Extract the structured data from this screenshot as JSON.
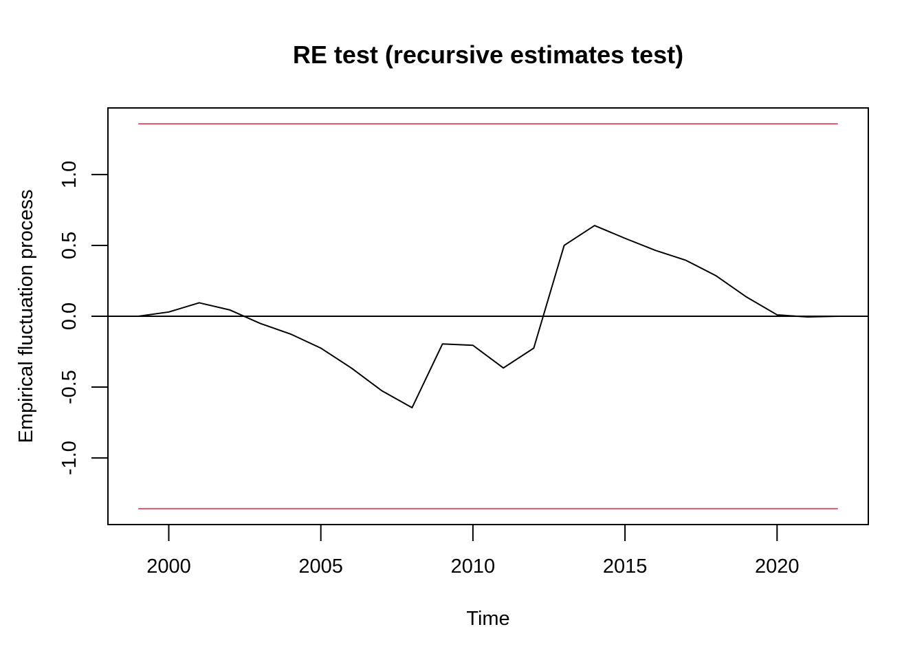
{
  "chart_data": {
    "type": "line",
    "title": "RE test (recursive estimates test)",
    "xlabel": "Time",
    "ylabel": "Empirical fluctuation process",
    "xlim": [
      1998,
      2023
    ],
    "ylim": [
      -1.47,
      1.47
    ],
    "x_ticks": [
      2000,
      2005,
      2010,
      2015,
      2020
    ],
    "x_tick_labels": [
      "2000",
      "2005",
      "2010",
      "2015",
      "2020"
    ],
    "y_ticks": [
      -1.0,
      -0.5,
      0.0,
      0.5,
      1.0
    ],
    "y_tick_labels": [
      "-1.0",
      "-0.5",
      "0.0",
      "0.5",
      "1.0"
    ],
    "grid": false,
    "legend": "none",
    "series": [
      {
        "color": "#000000",
        "x": [
          1999,
          2000,
          2001,
          2002,
          2003,
          2004,
          2005,
          2006,
          2007,
          2008,
          2009,
          2010,
          2011,
          2012,
          2013,
          2014,
          2015,
          2016,
          2017,
          2018,
          2019,
          2020,
          2021,
          2022
        ],
        "values": [
          0.0,
          0.03,
          0.095,
          0.045,
          -0.05,
          -0.125,
          -0.225,
          -0.365,
          -0.525,
          -0.645,
          -0.195,
          -0.205,
          -0.365,
          -0.225,
          0.5,
          0.64,
          0.55,
          0.465,
          0.395,
          0.285,
          0.135,
          0.01,
          -0.005,
          0.0
        ]
      }
    ],
    "boundaries": {
      "color": "#DF536B",
      "upper": 1.358,
      "lower": -1.358,
      "x_range": [
        1999,
        2022
      ]
    },
    "reference_line": {
      "y": 0.0,
      "color": "#000000"
    }
  }
}
